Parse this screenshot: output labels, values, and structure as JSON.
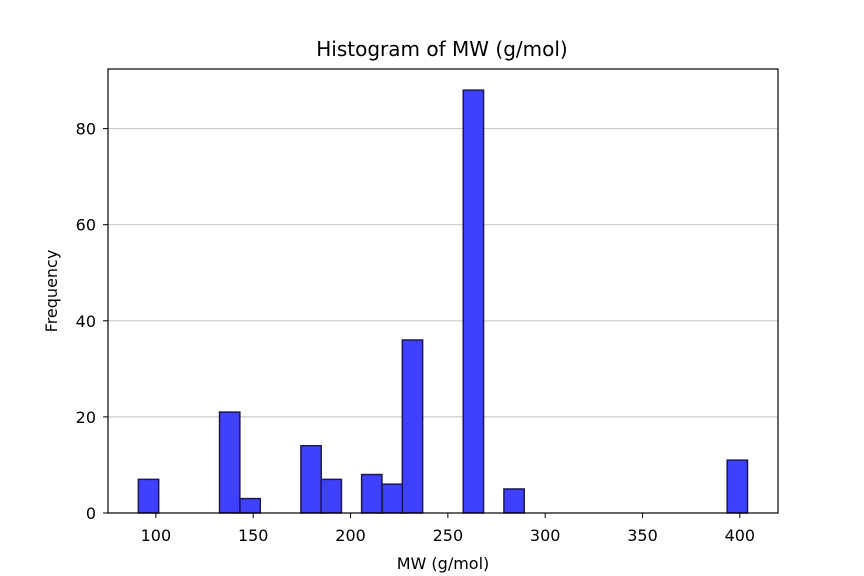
{
  "chart_data": {
    "type": "bar",
    "title": "Histogram of MW (g/mol)",
    "xlabel": "MW (g/mol)",
    "ylabel": "Frequency",
    "xlim": [
      75.4,
      419.6
    ],
    "ylim": [
      0,
      92.4
    ],
    "xticks": [
      100,
      150,
      200,
      250,
      300,
      350,
      400
    ],
    "yticks": [
      0,
      20,
      40,
      60,
      80
    ],
    "grid": "horizontal",
    "bin_width": 10.43,
    "bar_color": "#4040ff",
    "edge_color": "#1a1a4d",
    "bins": [
      {
        "x0": 91.0,
        "count": 7
      },
      {
        "x0": 101.4,
        "count": 0
      },
      {
        "x0": 111.9,
        "count": 0
      },
      {
        "x0": 122.3,
        "count": 0
      },
      {
        "x0": 132.7,
        "count": 21
      },
      {
        "x0": 143.2,
        "count": 3
      },
      {
        "x0": 153.6,
        "count": 0
      },
      {
        "x0": 164.0,
        "count": 0
      },
      {
        "x0": 174.5,
        "count": 14
      },
      {
        "x0": 184.9,
        "count": 7
      },
      {
        "x0": 195.3,
        "count": 0
      },
      {
        "x0": 205.7,
        "count": 8
      },
      {
        "x0": 216.2,
        "count": 6
      },
      {
        "x0": 226.6,
        "count": 36
      },
      {
        "x0": 237.0,
        "count": 0
      },
      {
        "x0": 247.5,
        "count": 0
      },
      {
        "x0": 257.9,
        "count": 88
      },
      {
        "x0": 268.3,
        "count": 0
      },
      {
        "x0": 278.8,
        "count": 5
      },
      {
        "x0": 289.2,
        "count": 0
      },
      {
        "x0": 299.6,
        "count": 0
      },
      {
        "x0": 310.1,
        "count": 0
      },
      {
        "x0": 320.5,
        "count": 0
      },
      {
        "x0": 330.9,
        "count": 0
      },
      {
        "x0": 341.3,
        "count": 0
      },
      {
        "x0": 351.8,
        "count": 0
      },
      {
        "x0": 362.2,
        "count": 0
      },
      {
        "x0": 372.6,
        "count": 0
      },
      {
        "x0": 383.1,
        "count": 0
      },
      {
        "x0": 393.5,
        "count": 11
      }
    ]
  }
}
